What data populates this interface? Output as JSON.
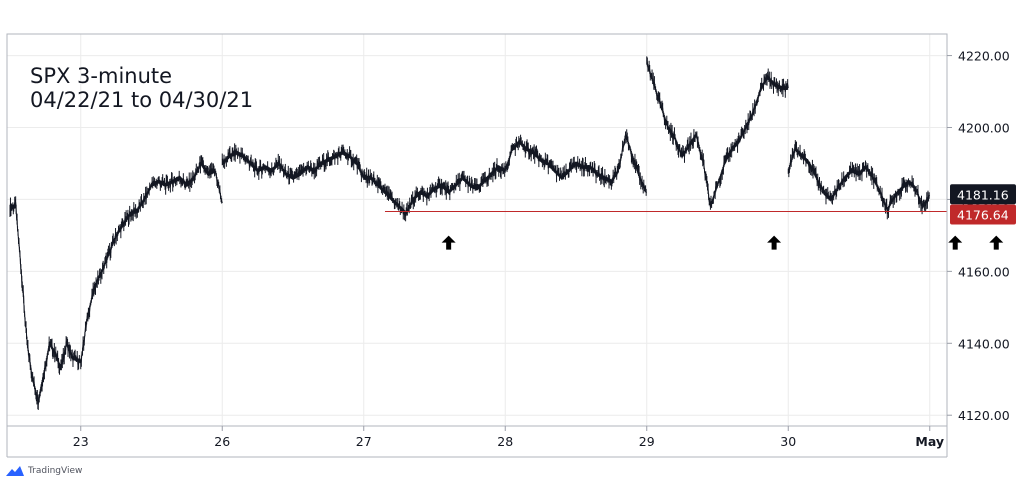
{
  "chart_data": {
    "type": "line",
    "title": "SPX 3-minute",
    "subtitle": "04/22/21 to 04/30/21",
    "xlabel": "",
    "ylabel": "",
    "ylim": [
      4117,
      4226
    ],
    "y_ticks": [
      "4220.00",
      "4200.00",
      "4180.00",
      "4160.00",
      "4140.00",
      "4120.00"
    ],
    "x_ticks": [
      "23",
      "26",
      "27",
      "28",
      "29",
      "30",
      "May"
    ],
    "price_labels": {
      "last": {
        "text": "4181.16",
        "value": 4181.16,
        "color": "#131722"
      },
      "support": {
        "text": "4176.64",
        "value": 4176.64,
        "color": "#c0292a"
      }
    },
    "support_line": {
      "value": 4176.64,
      "from_day": 2.65,
      "to_day": 6.9,
      "color": "#c0292a"
    },
    "arrows": [
      {
        "day": 3.1,
        "value": 4168
      },
      {
        "day": 5.4,
        "value": 4168
      },
      {
        "day": 6.68,
        "value": 4168
      },
      {
        "day": 6.97,
        "value": 4168
      }
    ],
    "sessions": [
      {
        "label": "Apr 22",
        "start": 0.0,
        "end": 0.5,
        "points": [
          [
            0.0,
            4178
          ],
          [
            0.04,
            4178
          ],
          [
            0.08,
            4160
          ],
          [
            0.12,
            4140
          ],
          [
            0.16,
            4130
          ],
          [
            0.2,
            4124
          ],
          [
            0.24,
            4132
          ],
          [
            0.28,
            4140
          ],
          [
            0.32,
            4137
          ],
          [
            0.36,
            4133
          ],
          [
            0.4,
            4140
          ],
          [
            0.44,
            4136
          ],
          [
            0.5,
            4135
          ]
        ]
      },
      {
        "label": "Apr 23",
        "start": 0.5,
        "end": 1.5,
        "points": [
          [
            0.5,
            4135
          ],
          [
            0.55,
            4148
          ],
          [
            0.6,
            4156
          ],
          [
            0.65,
            4160
          ],
          [
            0.7,
            4165
          ],
          [
            0.75,
            4170
          ],
          [
            0.8,
            4173
          ],
          [
            0.85,
            4176
          ],
          [
            0.9,
            4177
          ],
          [
            0.95,
            4180
          ],
          [
            1.0,
            4184
          ],
          [
            1.05,
            4185
          ],
          [
            1.1,
            4184
          ],
          [
            1.15,
            4185
          ],
          [
            1.2,
            4186
          ],
          [
            1.25,
            4184
          ],
          [
            1.3,
            4186
          ],
          [
            1.35,
            4190
          ],
          [
            1.4,
            4187
          ],
          [
            1.45,
            4188
          ],
          [
            1.5,
            4179
          ]
        ]
      },
      {
        "label": "Apr 26",
        "start": 1.5,
        "end": 2.5,
        "points": [
          [
            1.5,
            4190
          ],
          [
            1.55,
            4192
          ],
          [
            1.6,
            4193
          ],
          [
            1.65,
            4192
          ],
          [
            1.7,
            4190
          ],
          [
            1.75,
            4188
          ],
          [
            1.8,
            4189
          ],
          [
            1.85,
            4188
          ],
          [
            1.9,
            4190
          ],
          [
            1.95,
            4187
          ],
          [
            2.0,
            4186
          ],
          [
            2.05,
            4187
          ],
          [
            2.1,
            4189
          ],
          [
            2.15,
            4188
          ],
          [
            2.2,
            4190
          ],
          [
            2.25,
            4191
          ],
          [
            2.3,
            4192
          ],
          [
            2.35,
            4193
          ],
          [
            2.4,
            4192
          ],
          [
            2.45,
            4190
          ],
          [
            2.5,
            4186
          ]
        ]
      },
      {
        "label": "Apr 27",
        "start": 2.5,
        "end": 3.5,
        "points": [
          [
            2.5,
            4186
          ],
          [
            2.55,
            4186
          ],
          [
            2.6,
            4184
          ],
          [
            2.65,
            4182
          ],
          [
            2.7,
            4180
          ],
          [
            2.75,
            4178
          ],
          [
            2.8,
            4176
          ],
          [
            2.85,
            4180
          ],
          [
            2.9,
            4182
          ],
          [
            2.95,
            4181
          ],
          [
            3.0,
            4183
          ],
          [
            3.05,
            4184
          ],
          [
            3.1,
            4182
          ],
          [
            3.15,
            4184
          ],
          [
            3.2,
            4186
          ],
          [
            3.25,
            4184
          ],
          [
            3.3,
            4183
          ],
          [
            3.35,
            4185
          ],
          [
            3.4,
            4187
          ],
          [
            3.45,
            4189
          ],
          [
            3.5,
            4188
          ]
        ]
      },
      {
        "label": "Apr 28",
        "start": 3.5,
        "end": 4.5,
        "points": [
          [
            3.5,
            4188
          ],
          [
            3.55,
            4194
          ],
          [
            3.6,
            4196
          ],
          [
            3.65,
            4194
          ],
          [
            3.7,
            4193
          ],
          [
            3.75,
            4191
          ],
          [
            3.8,
            4190
          ],
          [
            3.85,
            4188
          ],
          [
            3.9,
            4186
          ],
          [
            3.95,
            4188
          ],
          [
            4.0,
            4190
          ],
          [
            4.05,
            4189
          ],
          [
            4.1,
            4189
          ],
          [
            4.15,
            4187
          ],
          [
            4.2,
            4186
          ],
          [
            4.25,
            4185
          ],
          [
            4.3,
            4188
          ],
          [
            4.35,
            4198
          ],
          [
            4.4,
            4192
          ],
          [
            4.45,
            4186
          ],
          [
            4.5,
            4182
          ]
        ]
      },
      {
        "label": "Apr 29",
        "start": 4.5,
        "end": 5.5,
        "points": [
          [
            4.5,
            4218
          ],
          [
            4.55,
            4212
          ],
          [
            4.6,
            4206
          ],
          [
            4.65,
            4200
          ],
          [
            4.7,
            4197
          ],
          [
            4.75,
            4192
          ],
          [
            4.8,
            4195
          ],
          [
            4.85,
            4198
          ],
          [
            4.9,
            4190
          ],
          [
            4.95,
            4178
          ],
          [
            5.0,
            4184
          ],
          [
            5.05,
            4190
          ],
          [
            5.1,
            4194
          ],
          [
            5.15,
            4196
          ],
          [
            5.2,
            4200
          ],
          [
            5.25,
            4204
          ],
          [
            5.3,
            4210
          ],
          [
            5.35,
            4214
          ],
          [
            5.4,
            4212
          ],
          [
            5.45,
            4211
          ],
          [
            5.5,
            4211
          ]
        ]
      },
      {
        "label": "Apr 30",
        "start": 5.5,
        "end": 6.5,
        "points": [
          [
            5.5,
            4188
          ],
          [
            5.55,
            4194
          ],
          [
            5.6,
            4192
          ],
          [
            5.65,
            4190
          ],
          [
            5.7,
            4186
          ],
          [
            5.75,
            4182
          ],
          [
            5.8,
            4180
          ],
          [
            5.85,
            4183
          ],
          [
            5.9,
            4186
          ],
          [
            5.95,
            4188
          ],
          [
            6.0,
            4187
          ],
          [
            6.05,
            4189
          ],
          [
            6.1,
            4186
          ],
          [
            6.15,
            4182
          ],
          [
            6.2,
            4177
          ],
          [
            6.25,
            4181
          ],
          [
            6.3,
            4183
          ],
          [
            6.35,
            4185
          ],
          [
            6.4,
            4183
          ],
          [
            6.45,
            4178
          ],
          [
            6.5,
            4181
          ]
        ]
      }
    ]
  },
  "brand": {
    "name": "TradingView"
  }
}
